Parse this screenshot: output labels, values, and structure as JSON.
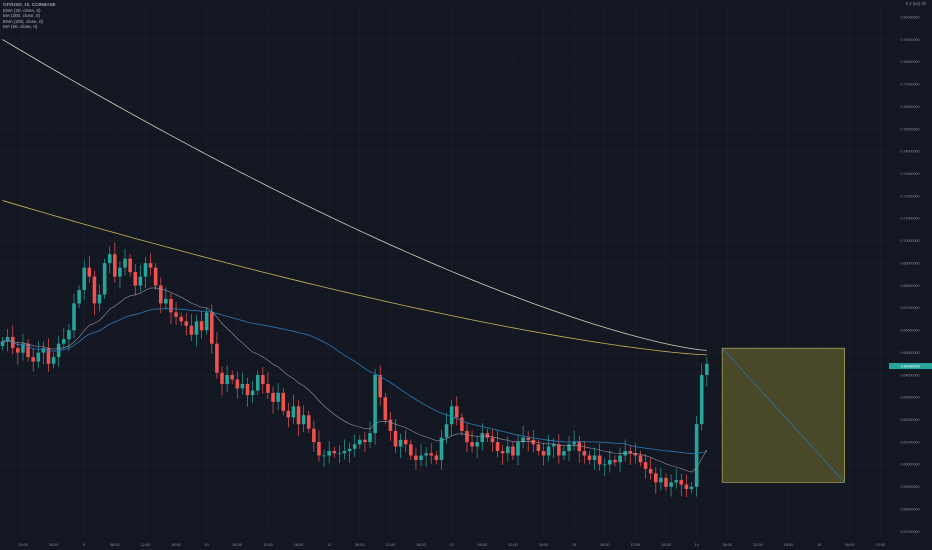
{
  "header": {
    "symbol": "GFI/USD, 1h, COINBASE",
    "indicators": [
      "EMA (20, close, 0)",
      "MA (200, close, 0)",
      "EMA (200, close, 0)",
      "MA (50, close, 0)"
    ]
  },
  "corner_label": "0.4 (ep) 4h",
  "colors": {
    "background": "#131722",
    "grid": "#1e2230",
    "up": "#26a69a",
    "down": "#ef5350",
    "ema20": "#9598a1",
    "ma200": "#d6d2b8",
    "ema200": "#c9b458",
    "ma50": "#2b7ab5",
    "box_fill": "#5c5a2c",
    "box_stroke": "#c9c266",
    "diag": "#2b7ab5",
    "price_tag": "#26a69a"
  },
  "chart_data": {
    "type": "candlestick",
    "y_axis": {
      "range": [
        0.568,
        0.805
      ],
      "ticks": [
        "0.80000000",
        "0.79000000",
        "0.78000000",
        "0.77000000",
        "0.76000000",
        "0.75000000",
        "0.74000000",
        "0.73000000",
        "0.72000000",
        "0.71000000",
        "0.70000000",
        "0.69000000",
        "0.68000000",
        "0.67000000",
        "0.66000000",
        "0.65000000",
        "0.64000000",
        "0.63000000",
        "0.62000000",
        "0.61000000",
        "0.60000000",
        "0.59000000",
        "0.58000000",
        "0.57000000"
      ]
    },
    "x_axis": {
      "ticks": [
        {
          "label": "12:00",
          "bar": 4
        },
        {
          "label": "18:00",
          "bar": 10
        },
        {
          "label": "9",
          "bar": 16
        },
        {
          "label": "06:00",
          "bar": 22
        },
        {
          "label": "12:00",
          "bar": 28
        },
        {
          "label": "18:00",
          "bar": 34
        },
        {
          "label": "10",
          "bar": 40
        },
        {
          "label": "06:00",
          "bar": 46
        },
        {
          "label": "12:00",
          "bar": 52
        },
        {
          "label": "18:00",
          "bar": 58
        },
        {
          "label": "11",
          "bar": 64
        },
        {
          "label": "06:00",
          "bar": 70
        },
        {
          "label": "12:00",
          "bar": 76
        },
        {
          "label": "18:00",
          "bar": 82
        },
        {
          "label": "12",
          "bar": 88
        },
        {
          "label": "06:00",
          "bar": 94
        },
        {
          "label": "12:00",
          "bar": 100
        },
        {
          "label": "18:00",
          "bar": 106
        },
        {
          "label": "13",
          "bar": 112
        },
        {
          "label": "06:00",
          "bar": 118
        },
        {
          "label": "12:00",
          "bar": 124
        },
        {
          "label": "18:00",
          "bar": 130
        },
        {
          "label": "14",
          "bar": 136
        },
        {
          "label": "06:00",
          "bar": 142
        },
        {
          "label": "12:00",
          "bar": 148
        },
        {
          "label": "18:00",
          "bar": 154
        },
        {
          "label": "15",
          "bar": 160
        },
        {
          "label": "06:00",
          "bar": 166
        },
        {
          "label": "12:00",
          "bar": 172
        }
      ]
    },
    "bar_count_visible": 174,
    "candles_close": [
      0.655,
      0.657,
      0.652,
      0.65,
      0.654,
      0.648,
      0.646,
      0.65,
      0.652,
      0.645,
      0.648,
      0.654,
      0.656,
      0.66,
      0.672,
      0.678,
      0.688,
      0.684,
      0.672,
      0.676,
      0.69,
      0.694,
      0.684,
      0.688,
      0.692,
      0.686,
      0.68,
      0.684,
      0.69,
      0.688,
      0.68,
      0.672,
      0.674,
      0.668,
      0.666,
      0.664,
      0.662,
      0.658,
      0.664,
      0.66,
      0.668,
      0.654,
      0.641,
      0.636,
      0.64,
      0.638,
      0.634,
      0.636,
      0.631,
      0.633,
      0.64,
      0.636,
      0.632,
      0.628,
      0.632,
      0.624,
      0.621,
      0.626,
      0.618,
      0.622,
      0.616,
      0.61,
      0.604,
      0.604,
      0.606,
      0.605,
      0.605,
      0.606,
      0.607,
      0.609,
      0.611,
      0.61,
      0.614,
      0.64,
      0.63,
      0.62,
      0.615,
      0.608,
      0.611,
      0.609,
      0.604,
      0.602,
      0.604,
      0.605,
      0.604,
      0.602,
      0.612,
      0.618,
      0.626,
      0.621,
      0.615,
      0.61,
      0.608,
      0.61,
      0.614,
      0.612,
      0.61,
      0.606,
      0.605,
      0.608,
      0.604,
      0.61,
      0.612,
      0.611,
      0.609,
      0.606,
      0.604,
      0.608,
      0.609,
      0.604,
      0.606,
      0.609,
      0.61,
      0.606,
      0.604,
      0.602,
      0.604,
      0.6,
      0.6,
      0.602,
      0.601,
      0.604,
      0.606,
      0.605,
      0.604,
      0.601,
      0.598,
      0.596,
      0.592,
      0.594,
      0.59,
      0.592,
      0.593,
      0.591,
      0.589,
      0.59,
      0.618,
      0.64,
      0.645
    ],
    "series": [
      {
        "name": "MA (50, close, 0)",
        "ma_period": 50
      },
      {
        "name": "EMA (200, close, 0)",
        "start": 0.718,
        "end": 0.649
      },
      {
        "name": "MA (200, close, 0)",
        "start": 0.79,
        "end": 0.651
      },
      {
        "name": "EMA (20, close, 0)",
        "ema_period": 20
      }
    ],
    "last_price": "0.64400000",
    "projection_box": {
      "from_bar": 141,
      "to_bar": 165,
      "top": 0.652,
      "bottom": 0.592
    }
  }
}
